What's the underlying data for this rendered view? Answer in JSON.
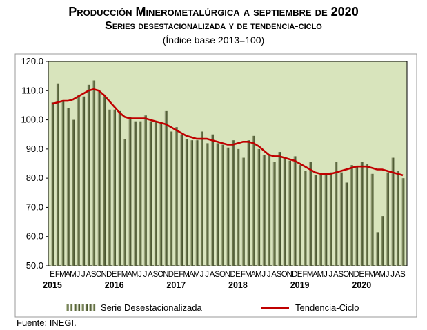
{
  "title": "Producción Minerometalúrgica a septiembre de 2020",
  "subtitle": "Series desestacionalizada y de tendencia-ciclo",
  "subtitle2": "(Índice base 2013=100)",
  "source": "Fuente: INEGI.",
  "colors": {
    "plot_bg": "#d8e4bc",
    "bar": "#6e7a4e",
    "bar_light": "#e6edcf",
    "line": "#c00000",
    "frame": "#000000"
  },
  "chart_data": {
    "type": "bar",
    "ylim": [
      50,
      120
    ],
    "yticks": [
      "50.0",
      "60.0",
      "70.0",
      "80.0",
      "90.0",
      "100.0",
      "110.0",
      "120.0"
    ],
    "month_labels": [
      "E",
      "F",
      "M",
      "A",
      "M",
      "J",
      "J",
      "A",
      "S",
      "O",
      "N",
      "D",
      "E",
      "F",
      "M",
      "A",
      "M",
      "J",
      "J",
      "A",
      "S",
      "O",
      "N",
      "D",
      "E",
      "F",
      "M",
      "A",
      "M",
      "J",
      "J",
      "A",
      "S",
      "O",
      "N",
      "D",
      "E",
      "F",
      "M",
      "A",
      "M",
      "J",
      "J",
      "A",
      "S",
      "O",
      "N",
      "D",
      "E",
      "F",
      "M",
      "A",
      "M",
      "J",
      "J",
      "A",
      "S",
      "O",
      "N",
      "D",
      "E",
      "F",
      "M",
      "A",
      "M",
      "J",
      "J",
      "A",
      "S"
    ],
    "year_labels": [
      {
        "label": "2015",
        "index": 0
      },
      {
        "label": "2016",
        "index": 12
      },
      {
        "label": "2017",
        "index": 24
      },
      {
        "label": "2018",
        "index": 36
      },
      {
        "label": "2019",
        "index": 48
      },
      {
        "label": "2020",
        "index": 60
      }
    ],
    "series": [
      {
        "name": "Serie Desestacionalizada",
        "kind": "bar",
        "values": [
          106,
          112.5,
          106.5,
          104,
          100,
          108.5,
          108,
          112,
          113.5,
          110,
          108,
          103.5,
          103.5,
          103,
          93.5,
          101,
          99.5,
          99.5,
          101.5,
          99.5,
          99.5,
          98.5,
          103,
          96,
          97.5,
          95,
          93.5,
          93,
          93,
          96,
          92,
          95,
          92,
          91.5,
          90.5,
          93,
          90,
          87,
          93,
          94.5,
          90,
          88,
          88,
          85.5,
          89,
          87,
          86,
          87.5,
          84.5,
          82.5,
          85.5,
          81,
          81,
          81,
          82,
          85.5,
          82,
          78.5,
          84.5,
          84,
          85.5,
          85,
          81.5,
          61.5,
          67,
          82,
          87,
          82.5,
          80
        ]
      },
      {
        "name": "Tendencia-Ciclo",
        "kind": "line",
        "values": [
          105.5,
          106,
          106.5,
          106.5,
          107,
          108,
          109,
          110,
          110.5,
          110,
          108.5,
          106.5,
          104.5,
          102.5,
          101,
          100.5,
          100.5,
          100.5,
          100.5,
          100,
          99.5,
          99,
          98.5,
          97.5,
          96.5,
          95.5,
          94.5,
          94,
          93.5,
          93.5,
          93.5,
          93,
          92.5,
          92,
          91.5,
          91.5,
          92,
          92.5,
          92.5,
          92,
          91,
          89.5,
          88,
          87.5,
          87.5,
          87,
          86.5,
          86,
          85,
          84,
          83,
          82,
          81.5,
          81.5,
          81.5,
          82,
          82.5,
          83,
          83.5,
          84,
          84,
          84,
          83.5,
          83,
          83,
          82.5,
          82,
          81.5,
          81
        ]
      }
    ],
    "legend": {
      "placement": "bottom",
      "entries": [
        "Serie Desestacionalizada",
        "Tendencia-Ciclo"
      ]
    },
    "grid": false
  }
}
